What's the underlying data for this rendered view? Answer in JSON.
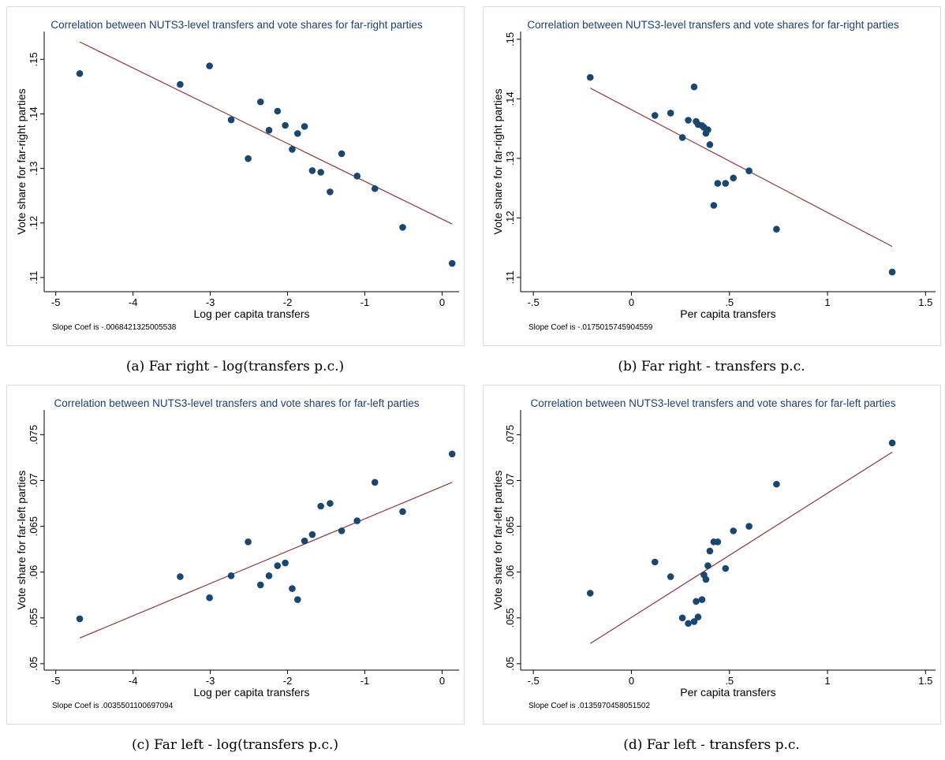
{
  "chart_data": [
    {
      "type": "scatter",
      "title": "Correlation between NUTS3-level transfers and vote shares for far-right parties",
      "xlabel": "Log per capita transfers",
      "ylabel": "Vote share for far-right parties",
      "note": "Slope Coef is -.0068421325005538",
      "caption": "(a)  Far right - log(transfers p.c.)",
      "color": "#1a476f",
      "fit_color": "#90353b",
      "x": [
        -4.69,
        -3.39,
        -3.01,
        -2.73,
        -2.51,
        -2.35,
        -2.24,
        -2.13,
        -2.03,
        -1.94,
        -1.87,
        -1.78,
        -1.68,
        -1.57,
        -1.45,
        -1.3,
        -1.1,
        -0.87,
        -0.51,
        0.13
      ],
      "values": [
        0.1474,
        0.1454,
        0.1488,
        0.1389,
        0.1318,
        0.1422,
        0.137,
        0.1405,
        0.1379,
        0.1335,
        0.1364,
        0.1377,
        0.1296,
        0.1293,
        0.1257,
        0.1327,
        0.1286,
        0.1263,
        0.1192,
        0.1126
      ],
      "fit": {
        "x": [
          -4.69,
          0.13
        ],
        "values": [
          0.1532,
          0.1198
        ]
      },
      "xlim": [
        -5.15,
        0.22
      ],
      "ylim": [
        0.1074,
        0.1551
      ],
      "xticks": [
        -5,
        -4,
        -3,
        -2,
        -1,
        0
      ],
      "yticks": [
        {
          "value": 0.11,
          "label": ".11"
        },
        {
          "value": 0.12,
          "label": ".12"
        },
        {
          "value": 0.13,
          "label": ".13"
        },
        {
          "value": 0.14,
          "label": ".14"
        },
        {
          "value": 0.15,
          "label": ".15"
        }
      ]
    },
    {
      "type": "scatter",
      "title": "Correlation between NUTS3-level transfers and vote shares for far-right parties",
      "xlabel": "Per capita transfers",
      "ylabel": "Vote share for far-right parties",
      "note": "Slope Coef is -.0175015745904559",
      "caption": "(b)  Far right - transfers p.c.",
      "color": "#1a476f",
      "fit_color": "#90353b",
      "x": [
        -0.21,
        0.12,
        0.2,
        0.26,
        0.29,
        0.32,
        0.33,
        0.34,
        0.36,
        0.37,
        0.38,
        0.39,
        0.4,
        0.42,
        0.44,
        0.48,
        0.52,
        0.6,
        0.74,
        1.33
      ],
      "values": [
        0.1436,
        0.1372,
        0.1376,
        0.1335,
        0.1364,
        0.142,
        0.1362,
        0.1357,
        0.1355,
        0.1352,
        0.1342,
        0.1348,
        0.1323,
        0.1221,
        0.1258,
        0.1258,
        0.1267,
        0.1279,
        0.1181,
        0.1109
      ],
      "fit": {
        "x": [
          -0.21,
          1.33
        ],
        "values": [
          0.1418,
          0.1152
        ]
      },
      "xlim": [
        -0.565,
        1.551
      ],
      "ylim": [
        0.1076,
        0.1513
      ],
      "xticks": [
        {
          "value": -0.5,
          "label": "-.5"
        },
        0,
        {
          "value": 0.5,
          "label": ".5"
        },
        1,
        1.5
      ],
      "yticks": [
        {
          "value": 0.11,
          "label": ".11"
        },
        {
          "value": 0.12,
          "label": ".12"
        },
        {
          "value": 0.13,
          "label": ".13"
        },
        {
          "value": 0.14,
          "label": ".14"
        },
        {
          "value": 0.15,
          "label": ".15"
        }
      ]
    },
    {
      "type": "scatter",
      "title": "Correlation between NUTS3-level transfers and vote shares for far-left parties",
      "xlabel": "Log per capita transfers",
      "ylabel": "Vote share for far-left parties",
      "note": "Slope Coef is .0035501100697094",
      "caption": "(c)  Far left - log(transfers p.c.)",
      "color": "#1a476f",
      "fit_color": "#90353b",
      "x": [
        -4.69,
        -3.39,
        -3.01,
        -2.73,
        -2.51,
        -2.35,
        -2.24,
        -2.13,
        -2.03,
        -1.94,
        -1.87,
        -1.78,
        -1.68,
        -1.57,
        -1.45,
        -1.3,
        -1.1,
        -0.87,
        -0.51,
        0.13
      ],
      "values": [
        0.0549,
        0.0595,
        0.0572,
        0.0596,
        0.0633,
        0.0586,
        0.0596,
        0.0607,
        0.061,
        0.0582,
        0.057,
        0.0634,
        0.0641,
        0.0672,
        0.0675,
        0.0645,
        0.0656,
        0.0698,
        0.0666,
        0.0729
      ],
      "fit": {
        "x": [
          -4.69,
          0.13
        ],
        "values": [
          0.0528,
          0.0698
        ]
      },
      "xlim": [
        -5.15,
        0.22
      ],
      "ylim": [
        0.0493,
        0.0777
      ],
      "xticks": [
        -5,
        -4,
        -3,
        -2,
        -1,
        0
      ],
      "yticks": [
        {
          "value": 0.05,
          "label": ".05"
        },
        {
          "value": 0.055,
          "label": ".055"
        },
        {
          "value": 0.06,
          "label": ".06"
        },
        {
          "value": 0.065,
          "label": ".065"
        },
        {
          "value": 0.07,
          "label": ".07"
        },
        {
          "value": 0.075,
          "label": ".075"
        }
      ]
    },
    {
      "type": "scatter",
      "title": "Correlation between NUTS3-level transfers and vote shares for far-left parties",
      "xlabel": "Per capita transfers",
      "ylabel": "Vote share for far-left parties",
      "note": "Slope Coef is .0135970458051502",
      "caption": "(d)  Far left - transfers p.c.",
      "color": "#1a476f",
      "fit_color": "#90353b",
      "x": [
        -0.21,
        0.12,
        0.2,
        0.26,
        0.29,
        0.32,
        0.33,
        0.34,
        0.36,
        0.37,
        0.38,
        0.39,
        0.4,
        0.42,
        0.44,
        0.48,
        0.52,
        0.6,
        0.74,
        1.33
      ],
      "values": [
        0.0577,
        0.0611,
        0.0595,
        0.055,
        0.0544,
        0.0546,
        0.0568,
        0.0551,
        0.057,
        0.0597,
        0.0592,
        0.0607,
        0.0623,
        0.0633,
        0.0633,
        0.0604,
        0.0645,
        0.065,
        0.0696,
        0.0741
      ],
      "fit": {
        "x": [
          -0.21,
          1.33
        ],
        "values": [
          0.0522,
          0.0731
        ]
      },
      "xlim": [
        -0.565,
        1.551
      ],
      "ylim": [
        0.0493,
        0.0777
      ],
      "xticks": [
        {
          "value": -0.5,
          "label": "-.5"
        },
        0,
        {
          "value": 0.5,
          "label": ".5"
        },
        1,
        1.5
      ],
      "yticks": [
        {
          "value": 0.05,
          "label": ".05"
        },
        {
          "value": 0.055,
          "label": ".055"
        },
        {
          "value": 0.06,
          "label": ".06"
        },
        {
          "value": 0.065,
          "label": ".065"
        },
        {
          "value": 0.07,
          "label": ".07"
        },
        {
          "value": 0.075,
          "label": ".075"
        }
      ]
    }
  ]
}
